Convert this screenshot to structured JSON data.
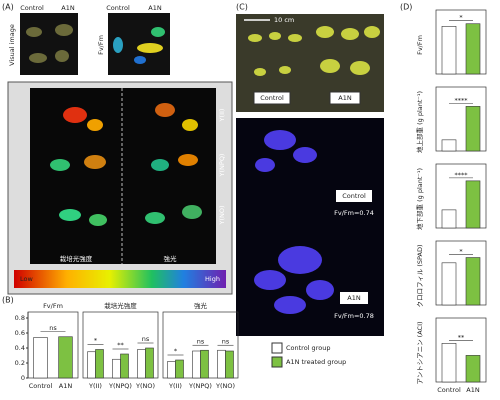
{
  "panels": [
    "(A)",
    "(B)",
    "(C)",
    "(D)"
  ],
  "panel_a": {
    "visual_control": "Control",
    "visual_a1n": "A1N",
    "visual_label": "Visual image",
    "fvfm_control": "Control",
    "fvfm_a1n": "A1N",
    "fvfm_label": "Fv/Fm",
    "rows": [
      "Y(II)",
      "Y(NPQ)",
      "Y(NO)"
    ],
    "cols": [
      "栽培光強度",
      "強光"
    ],
    "colorbar_low": "Low",
    "colorbar_high": "High"
  },
  "panel_c": {
    "scale": "10 cm",
    "photo_control": "Control",
    "photo_a1n": "A1N",
    "fluor_control": "Control",
    "fluor_control_value": "Fv/Fm=0.74",
    "fluor_a1n": "A1N",
    "fluor_a1n_value": "Fv/Fm=0.78"
  },
  "legend": [
    {
      "name": "Control group",
      "color": "#ffffff"
    },
    {
      "name": "A1N treated group",
      "color": "#7dc142"
    }
  ],
  "chart_data": [
    {
      "type": "grouped_bar",
      "ylim": [
        0,
        0.8
      ],
      "yticks": [
        0,
        0.2,
        0.4,
        0.6,
        0.8
      ],
      "groups": [
        {
          "name": "Fv/Fm",
          "categories": [
            "Control",
            "A1N"
          ],
          "values": [
            0.54,
            0.55
          ],
          "significance": "ns"
        },
        {
          "name": "栽培光強度",
          "categories": [
            "Y(II)",
            "Y(NPQ)",
            "Y(NO)"
          ],
          "series": [
            {
              "values": [
                0.35,
                0.25,
                0.38
              ]
            },
            {
              "values": [
                0.38,
                0.32,
                0.4
              ]
            }
          ],
          "significance": [
            "*",
            "**",
            "ns"
          ]
        },
        {
          "name": "強光",
          "categories": [
            "Y(II)",
            "Y(NPQ)",
            "Y(NO)"
          ],
          "series": [
            {
              "values": [
                0.22,
                0.36,
                0.37
              ]
            },
            {
              "values": [
                0.24,
                0.37,
                0.36
              ]
            }
          ],
          "significance": [
            "*",
            "ns",
            "ns"
          ]
        }
      ]
    },
    {
      "type": "pair_bar",
      "ylabel": "Fv/Fm",
      "ylim": [
        0,
        0.9
      ],
      "values": [
        0.74,
        0.78
      ],
      "significance": "*"
    },
    {
      "type": "pair_bar",
      "ylabel": "地上部重 (g plant⁻¹)",
      "ylim": [
        0,
        2.6
      ],
      "values": [
        0.5,
        2.0
      ],
      "significance": "****"
    },
    {
      "type": "pair_bar",
      "ylabel": "地下部重 (g plant⁻¹)",
      "ylim": [
        0,
        0.16
      ],
      "values": [
        0.05,
        0.13
      ],
      "significance": "****"
    },
    {
      "type": "pair_bar",
      "ylabel": "クロロフィル (SPAD)",
      "ylim": [
        0,
        44
      ],
      "values": [
        32,
        36
      ],
      "significance": "*"
    },
    {
      "type": "pair_bar",
      "ylabel": "アントシアニン (ACI)",
      "ylim": [
        0,
        12
      ],
      "values": [
        8,
        5.5
      ],
      "significance": "**",
      "categories": [
        "Control",
        "A1N"
      ]
    }
  ]
}
